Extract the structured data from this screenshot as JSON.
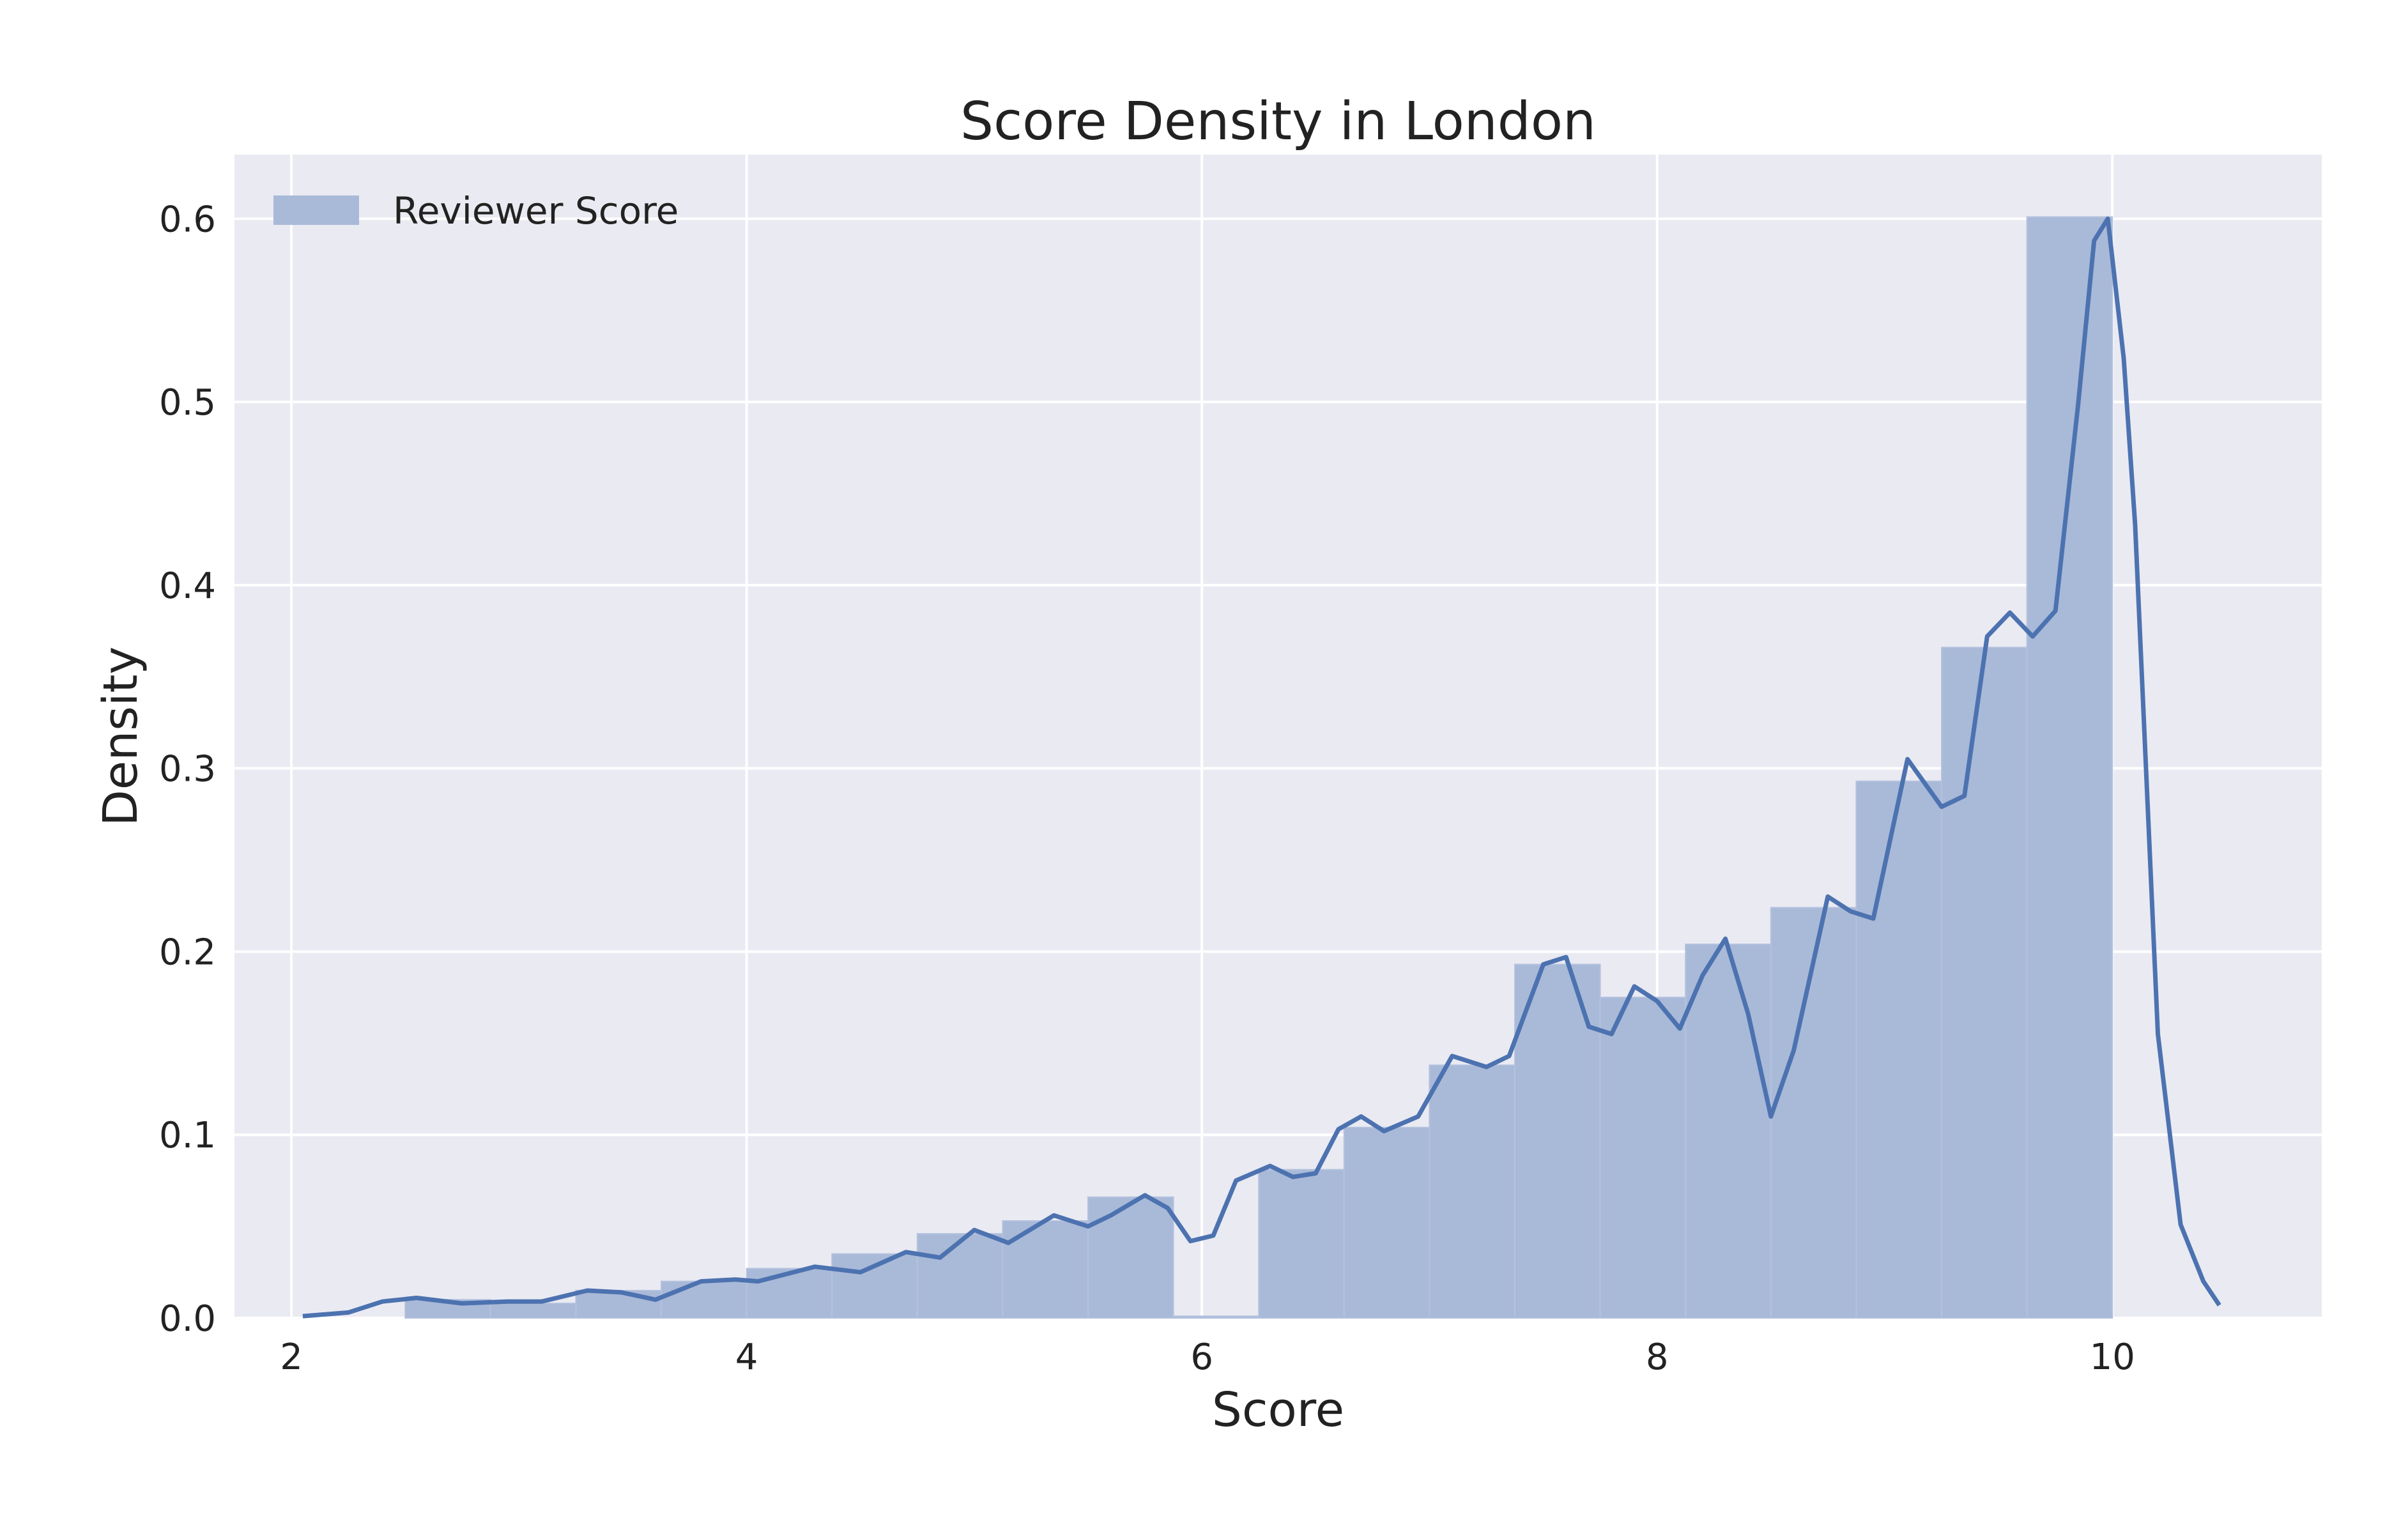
{
  "chart_data": {
    "type": "bar",
    "title": "Score Density in London",
    "xlabel": "Score",
    "ylabel": "Density",
    "xlim": [
      1.75,
      10.92
    ],
    "ylim": [
      0.0,
      0.635
    ],
    "xticks": [
      2,
      4,
      6,
      8,
      10
    ],
    "yticks": [
      0.0,
      0.1,
      0.2,
      0.3,
      0.4,
      0.5,
      0.6
    ],
    "xtick_labels": [
      "2",
      "4",
      "6",
      "8",
      "10"
    ],
    "ytick_labels": [
      "0.0",
      "0.1",
      "0.2",
      "0.3",
      "0.4",
      "0.5",
      "0.6"
    ],
    "grid": true,
    "legend": {
      "position": "top-left",
      "entries": [
        "Reviewer Score"
      ]
    },
    "colors": {
      "background": "#eaeaf2",
      "bar": "#a9b9d8",
      "line": "#4c72b0",
      "grid": "#ffffff"
    },
    "histogram": {
      "name": "Reviewer Score",
      "bin_edges": [
        2.5,
        2.875,
        3.25,
        3.625,
        4.0,
        4.375,
        4.75,
        5.125,
        5.5,
        5.875,
        6.25,
        6.625,
        7.0,
        7.375,
        7.75,
        8.125,
        8.5,
        8.875,
        9.25,
        9.625,
        10.0
      ],
      "values": [
        0.01,
        0.008,
        0.015,
        0.02,
        0.027,
        0.035,
        0.046,
        0.053,
        0.066,
        0.001,
        0.081,
        0.104,
        0.138,
        0.193,
        0.175,
        0.204,
        0.224,
        0.293,
        0.366,
        0.601
      ]
    },
    "kde": {
      "x": [
        2.05,
        2.25,
        2.4,
        2.55,
        2.75,
        2.95,
        3.1,
        3.3,
        3.45,
        3.6,
        3.8,
        3.95,
        4.05,
        4.3,
        4.5,
        4.7,
        4.85,
        5.0,
        5.15,
        5.35,
        5.5,
        5.6,
        5.75,
        5.85,
        5.95,
        6.05,
        6.15,
        6.3,
        6.4,
        6.5,
        6.6,
        6.7,
        6.8,
        6.95,
        7.1,
        7.25,
        7.35,
        7.5,
        7.6,
        7.7,
        7.8,
        7.9,
        8.0,
        8.1,
        8.2,
        8.3,
        8.4,
        8.5,
        8.6,
        8.75,
        8.85,
        8.95,
        9.1,
        9.25,
        9.35,
        9.45,
        9.55,
        9.65,
        9.75,
        9.85,
        9.92,
        9.98,
        10.05,
        10.1,
        10.2,
        10.3,
        10.4,
        10.47
      ],
      "y": [
        0.001,
        0.003,
        0.009,
        0.011,
        0.008,
        0.009,
        0.009,
        0.015,
        0.014,
        0.01,
        0.02,
        0.021,
        0.02,
        0.028,
        0.025,
        0.036,
        0.033,
        0.048,
        0.041,
        0.056,
        0.05,
        0.056,
        0.067,
        0.06,
        0.042,
        0.045,
        0.075,
        0.083,
        0.077,
        0.079,
        0.103,
        0.11,
        0.102,
        0.11,
        0.143,
        0.137,
        0.143,
        0.193,
        0.197,
        0.159,
        0.155,
        0.181,
        0.173,
        0.158,
        0.187,
        0.207,
        0.166,
        0.11,
        0.146,
        0.23,
        0.222,
        0.218,
        0.305,
        0.279,
        0.285,
        0.372,
        0.385,
        0.372,
        0.386,
        0.499,
        0.588,
        0.6,
        0.524,
        0.433,
        0.155,
        0.051,
        0.02,
        0.007
      ]
    }
  }
}
